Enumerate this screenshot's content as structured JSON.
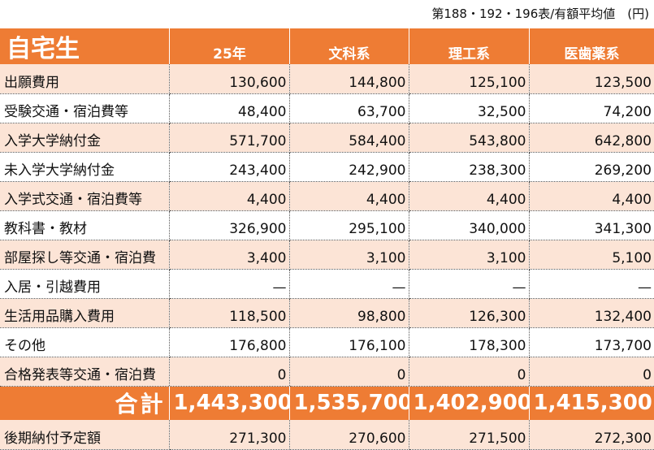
{
  "note": "第188・192・196表/有額平均値　(円)",
  "header": {
    "title": "自宅生",
    "columns": [
      "25年",
      "文科系",
      "理工系",
      "医歯薬系"
    ]
  },
  "rows": [
    {
      "label": "出願費用",
      "values": [
        "130,600",
        "144,800",
        "125,100",
        "123,500"
      ]
    },
    {
      "label": "受験交通・宿泊費等",
      "values": [
        "48,400",
        "63,700",
        "32,500",
        "74,200"
      ]
    },
    {
      "label": "入学大学納付金",
      "values": [
        "571,700",
        "584,400",
        "543,800",
        "642,800"
      ]
    },
    {
      "label": "未入学大学納付金",
      "values": [
        "243,400",
        "242,900",
        "238,300",
        "269,200"
      ]
    },
    {
      "label": "入学式交通・宿泊費等",
      "values": [
        "4,400",
        "4,400",
        "4,400",
        "4,400"
      ]
    },
    {
      "label": "教科書・教材",
      "values": [
        "326,900",
        "295,100",
        "340,000",
        "341,300"
      ]
    },
    {
      "label": "部屋探し等交通・宿泊費",
      "values": [
        "3,400",
        "3,100",
        "3,100",
        "5,100"
      ]
    },
    {
      "label": "入居・引越費用",
      "values": [
        "—",
        "—",
        "—",
        "—"
      ]
    },
    {
      "label": "生活用品購入費用",
      "values": [
        "118,500",
        "98,800",
        "126,300",
        "132,400"
      ]
    },
    {
      "label": "その他",
      "values": [
        "176,800",
        "176,100",
        "178,300",
        "173,700"
      ]
    },
    {
      "label": "合格発表等交通・宿泊費",
      "values": [
        "0",
        "0",
        "0",
        "0"
      ]
    }
  ],
  "total": {
    "label": "合計",
    "values": [
      "1,443,300",
      "1,535,700",
      "1,402,900",
      "1,415,300"
    ]
  },
  "after": {
    "label": "後期納付予定額",
    "values": [
      "271,300",
      "270,600",
      "271,500",
      "272,300"
    ]
  }
}
